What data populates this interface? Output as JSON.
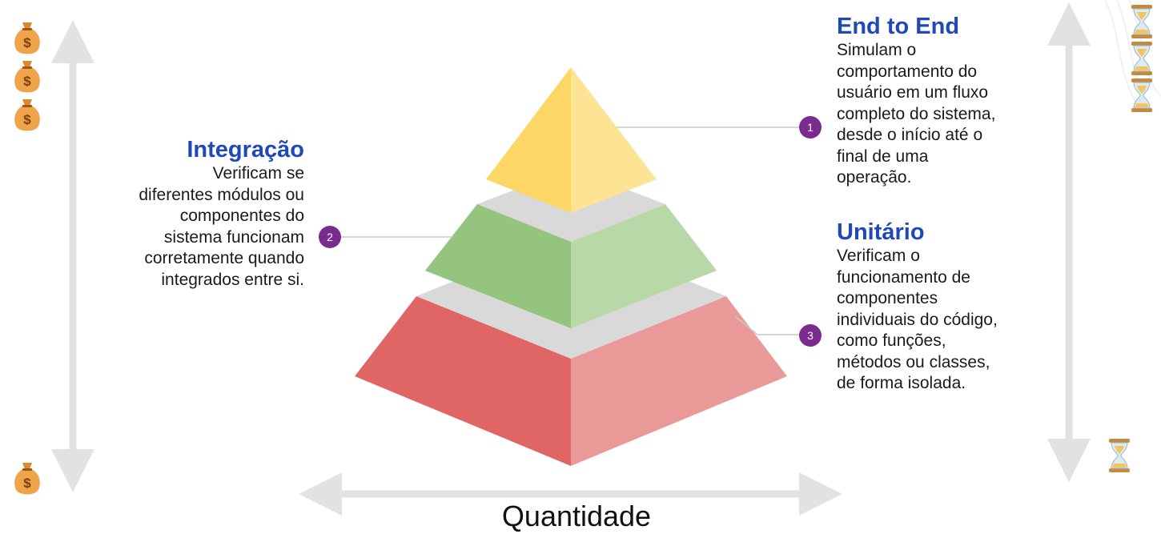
{
  "diagram": {
    "levels": [
      {
        "number": "1",
        "title": "End to End",
        "description": "Simulam o comportamento do usuário em um fluxo completo do sistema, desde o início até o final de uma operação.",
        "lines": [
          "Simulam o",
          "comportamento do",
          "usuário em um fluxo",
          "completo do sistema,",
          "desde o início até o",
          "final de uma",
          "operação."
        ],
        "color_left": "#fdd766",
        "color_right": "#fde394"
      },
      {
        "number": "2",
        "title": "Integração",
        "description": "Verificam se diferentes módulos ou componentes do sistema funcionam corretamente quando integrados entre si.",
        "lines": [
          "Verificam se",
          "diferentes módulos ou",
          "componentes do",
          "sistema funcionam",
          "corretamente quando",
          "integrados entre si."
        ],
        "color_left": "#94c47d",
        "color_right": "#b7d9a8"
      },
      {
        "number": "3",
        "title": "Unitário",
        "description": "Verificam o funcionamento de componentes individuais do código, como funções, métodos ou classes, de forma isolada.",
        "lines": [
          "Verificam o",
          "funcionamento de",
          "componentes",
          "individuais do código,",
          "como funções,",
          "métodos ou classes,",
          "de forma isolada."
        ],
        "color_left": "#e06666",
        "color_right": "#ea9999"
      }
    ],
    "x_axis_label": "Quantidade",
    "left_axis_icon": "money-bag-icon",
    "right_axis_icon": "hourglass-icon",
    "top_money_bags": 3,
    "bottom_money_bags": 1,
    "top_hourglasses": 3,
    "bottom_hourglasses": 1,
    "gap_color": "#d9d9d9",
    "badge_color": "#7b2a8f",
    "title_color": "#1f49b6"
  }
}
